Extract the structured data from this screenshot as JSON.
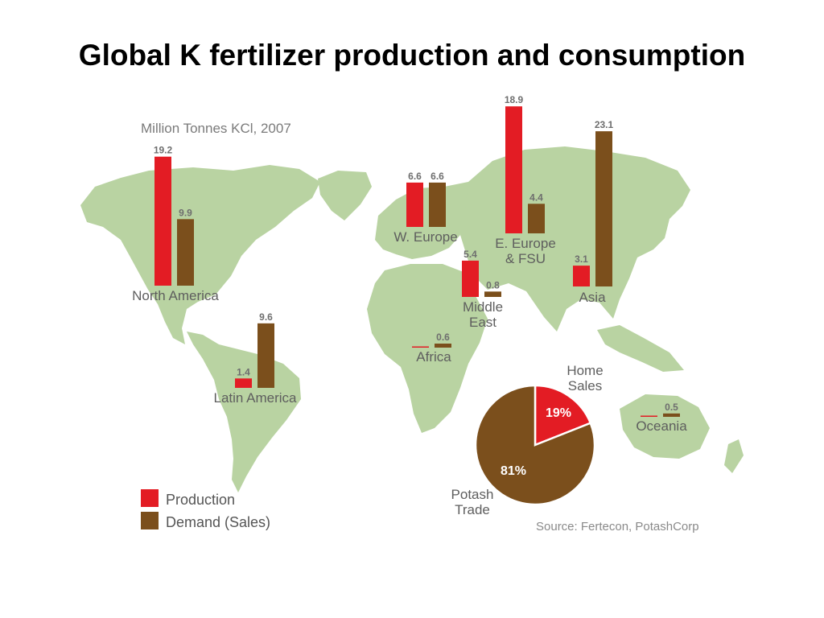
{
  "slide_title": "Global K fertilizer production and consumption",
  "colors": {
    "production": "#e31c24",
    "demand": "#7b4f1c",
    "land": "#b9d3a2",
    "pie_divider": "#ffffff"
  },
  "chart_data": [
    {
      "type": "bar",
      "title": "",
      "subtitle": "Million Tonnes KCl, 2007",
      "legend": {
        "position": "bottom-left",
        "entries": [
          "Production",
          "Demand (Sales)"
        ]
      },
      "series": [
        {
          "name": "Production",
          "values": [
            19.2,
            1.4,
            6.6,
            18.9,
            5.4,
            0.0,
            3.1,
            0.0
          ]
        },
        {
          "name": "Demand (Sales)",
          "values": [
            9.9,
            9.6,
            6.6,
            4.4,
            0.8,
            0.6,
            23.1,
            0.5
          ]
        }
      ],
      "categories": [
        "North America",
        "Latin America",
        "W. Europe",
        "E. Europe & FSU",
        "Middle East",
        "Africa",
        "Asia",
        "Oceania"
      ],
      "regions": [
        {
          "name": "North America",
          "lines": [
            "North America"
          ],
          "production": 19.2,
          "demand": 9.9,
          "production_label": "19.2",
          "demand_label": "9.9"
        },
        {
          "name": "Latin America",
          "lines": [
            "Latin America"
          ],
          "production": 1.4,
          "demand": 9.6,
          "production_label": "1.4",
          "demand_label": "9.6"
        },
        {
          "name": "W. Europe",
          "lines": [
            "W. Europe"
          ],
          "production": 6.6,
          "demand": 6.6,
          "production_label": "6.6",
          "demand_label": "6.6"
        },
        {
          "name": "E. Europe & FSU",
          "lines": [
            "E. Europe",
            "& FSU"
          ],
          "production": 18.9,
          "demand": 4.4,
          "production_label": "18.9",
          "demand_label": "4.4"
        },
        {
          "name": "Middle East",
          "lines": [
            "Middle",
            "East"
          ],
          "production": 5.4,
          "demand": 0.8,
          "production_label": "5.4",
          "demand_label": "0.8"
        },
        {
          "name": "Africa",
          "lines": [
            "Africa"
          ],
          "production": 0.0,
          "demand": 0.6,
          "production_label": "",
          "demand_label": "0.6"
        },
        {
          "name": "Asia",
          "lines": [
            "Asia"
          ],
          "production": 3.1,
          "demand": 23.1,
          "production_label": "3.1",
          "demand_label": "23.1"
        },
        {
          "name": "Oceania",
          "lines": [
            "Oceania"
          ],
          "production": 0.0,
          "demand": 0.5,
          "production_label": "",
          "demand_label": "0.5"
        }
      ]
    },
    {
      "type": "pie",
      "slices": [
        {
          "name": "Home Sales",
          "label_lines": [
            "Home",
            "Sales"
          ],
          "value": 19,
          "pct_label": "19%"
        },
        {
          "name": "Potash Trade",
          "label_lines": [
            "Potash",
            "Trade"
          ],
          "value": 81,
          "pct_label": "81%"
        }
      ]
    }
  ],
  "source": "Source: Fertecon, PotashCorp"
}
